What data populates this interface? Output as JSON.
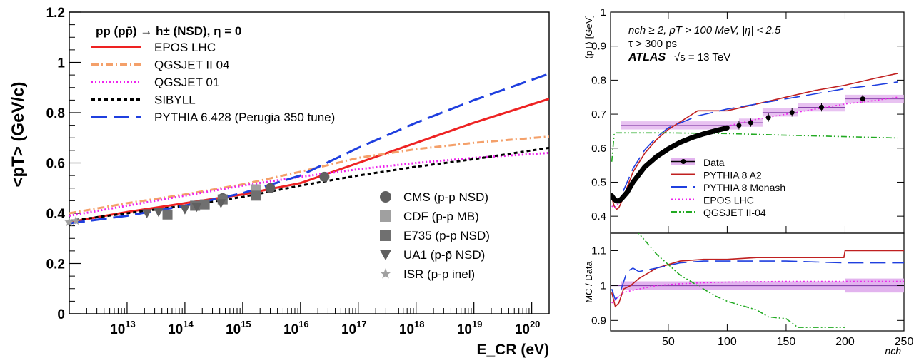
{
  "chart_data": [
    {
      "type": "line",
      "ylabel": "<pT> (GeV/c)",
      "xlabel": "E_CR (eV)",
      "xscale": "log",
      "xlim": [
        1000000000000.0,
        2e+20
      ],
      "ylim": [
        0,
        1.2
      ],
      "xticks": [
        "10^13",
        "10^14",
        "10^15",
        "10^16",
        "10^17",
        "10^18",
        "10^19",
        "10^20"
      ],
      "yticks": [
        "0",
        "0.2",
        "0.4",
        "0.6",
        "0.8",
        "1",
        "1.2"
      ],
      "legend_title": "pp (pp̄) → h± (NSD), η = 0",
      "legend_placement": "top-left",
      "marker_legend_placement": "bottom-right",
      "series": [
        {
          "name": "EPOS LHC",
          "color": "#ee2222",
          "style": "solid",
          "x": [
            1000000000000.0,
            10000000000000.0,
            100000000000000.0,
            1000000000000000.0,
            1e+16,
            1e+17,
            1e+18,
            1e+19,
            2e+20
          ],
          "y": [
            0.365,
            0.405,
            0.44,
            0.475,
            0.52,
            0.6,
            0.68,
            0.76,
            0.855
          ]
        },
        {
          "name": "QGSJET II 04",
          "color": "#f4a06a",
          "style": "dashdot",
          "x": [
            1000000000000.0,
            10000000000000.0,
            100000000000000.0,
            1000000000000000.0,
            1e+16,
            1e+17,
            1e+18,
            1e+19,
            2e+20
          ],
          "y": [
            0.4,
            0.44,
            0.475,
            0.515,
            0.565,
            0.62,
            0.655,
            0.68,
            0.705
          ]
        },
        {
          "name": "QGSJET 01",
          "color": "#ee22ee",
          "style": "dotted",
          "x": [
            1000000000000.0,
            10000000000000.0,
            100000000000000.0,
            1000000000000000.0,
            1e+16,
            1e+17,
            1e+18,
            1e+19,
            2e+20
          ],
          "y": [
            0.39,
            0.43,
            0.47,
            0.51,
            0.545,
            0.575,
            0.6,
            0.62,
            0.64
          ]
        },
        {
          "name": "SIBYLL",
          "color": "#000000",
          "style": "dashed",
          "x": [
            1000000000000.0,
            10000000000000.0,
            100000000000000.0,
            1000000000000000.0,
            1e+16,
            1e+17,
            1e+18,
            1e+19,
            2e+20
          ],
          "y": [
            0.37,
            0.4,
            0.43,
            0.465,
            0.51,
            0.55,
            0.585,
            0.615,
            0.66
          ]
        },
        {
          "name": "PYTHIA 6.428 (Perugia 350 tune)",
          "color": "#1f3fdf",
          "style": "longdash",
          "x": [
            1000000000000.0,
            10000000000000.0,
            100000000000000.0,
            1000000000000000.0,
            1e+16,
            1e+17,
            1e+18,
            1e+19,
            2e+20
          ],
          "y": [
            0.36,
            0.39,
            0.43,
            0.48,
            0.55,
            0.66,
            0.76,
            0.85,
            0.955
          ]
        }
      ],
      "markers": [
        {
          "name": "CMS (p-p NSD)",
          "shape": "circle",
          "color": "#606060",
          "x": [
            450000000000000.0,
            3000000000000000.0,
            2.6e+16
          ],
          "y": [
            0.46,
            0.5,
            0.545
          ]
        },
        {
          "name": "CDF (p-p̄ MB)",
          "shape": "square",
          "color": "#a0a0a0",
          "x": [
            1700000000000000.0
          ],
          "y": [
            0.495
          ]
        },
        {
          "name": "E735 (p-p̄ NSD)",
          "shape": "square",
          "color": "#707070",
          "x": [
            50000000000000.0,
            150000000000000.0,
            220000000000000.0,
            450000000000000.0,
            1700000000000000.0
          ],
          "y": [
            0.395,
            0.43,
            0.435,
            0.455,
            0.47
          ]
        },
        {
          "name": "UA1 (p-p̄ NSD)",
          "shape": "triangle-down",
          "color": "#606060",
          "x": [
            22000000000000.0,
            35000000000000.0,
            100000000000000.0,
            160000000000000.0,
            420000000000000.0
          ],
          "y": [
            0.4,
            0.405,
            0.415,
            0.425,
            0.44
          ]
        },
        {
          "name": "ISR (p-p inel)",
          "shape": "star",
          "color": "#a0a0a0",
          "x": [
            1000000000000.0,
            1300000000000.0
          ],
          "y": [
            0.365,
            0.37
          ]
        }
      ]
    },
    {
      "type": "line",
      "ylabel": "⟨pT⟩ [GeV]",
      "xlabel": "nch",
      "xlim": [
        1,
        250
      ],
      "ylim": [
        0.35,
        1.0
      ],
      "xticks": [
        "50",
        "100",
        "150",
        "200",
        "250"
      ],
      "yticks": [
        "0.4",
        "0.5",
        "0.6",
        "0.7",
        "0.8",
        "0.9",
        "1"
      ],
      "annotations": [
        "nch ≥ 2, pT > 100 MeV, |η| < 2.5",
        "τ > 300 ps",
        "ATLAS",
        "√s = 13 TeV"
      ],
      "legend_placement": "lower-middle",
      "series": [
        {
          "name": "Data",
          "color": "#000000",
          "style": "points",
          "band_color": "#e2b3ee",
          "x": [
            2,
            4,
            6,
            8,
            10,
            15,
            20,
            30,
            40,
            50,
            60,
            70,
            80,
            90,
            100,
            110,
            120,
            135,
            155,
            180,
            215
          ],
          "y": [
            0.46,
            0.45,
            0.445,
            0.445,
            0.45,
            0.47,
            0.5,
            0.545,
            0.575,
            0.598,
            0.617,
            0.631,
            0.642,
            0.651,
            0.66,
            0.667,
            0.675,
            0.69,
            0.705,
            0.72,
            0.745
          ]
        },
        {
          "name": "PYTHIA 8 A2",
          "color": "#c02020",
          "style": "solid",
          "x": [
            2,
            4,
            6,
            8,
            10,
            20,
            30,
            40,
            50,
            75,
            100,
            125,
            150,
            175,
            200,
            225,
            245
          ],
          "y": [
            0.455,
            0.43,
            0.42,
            0.425,
            0.44,
            0.53,
            0.585,
            0.625,
            0.655,
            0.71,
            0.71,
            0.73,
            0.75,
            0.77,
            0.785,
            0.805,
            0.82
          ]
        },
        {
          "name": "PYTHIA 8 Monash",
          "color": "#1f3fdf",
          "style": "longdash",
          "x": [
            2,
            4,
            6,
            8,
            10,
            20,
            30,
            40,
            50,
            75,
            100,
            125,
            150,
            175,
            200,
            225,
            245
          ],
          "y": [
            0.46,
            0.445,
            0.44,
            0.445,
            0.46,
            0.54,
            0.595,
            0.632,
            0.66,
            0.695,
            0.715,
            0.73,
            0.745,
            0.76,
            0.775,
            0.785,
            0.795
          ]
        },
        {
          "name": "EPOS LHC",
          "color": "#ee22ee",
          "style": "dotted",
          "x": [
            2,
            4,
            6,
            8,
            10,
            20,
            30,
            40,
            50,
            75,
            100,
            125,
            150,
            175,
            200,
            225,
            245
          ],
          "y": [
            0.43,
            0.425,
            0.43,
            0.44,
            0.45,
            0.5,
            0.54,
            0.57,
            0.595,
            0.64,
            0.665,
            0.685,
            0.7,
            0.715,
            0.73,
            0.74,
            0.75
          ]
        },
        {
          "name": "QGSJET II-04",
          "color": "#22aa22",
          "style": "dashdotdot",
          "x": [
            2,
            4,
            6,
            8,
            10,
            20,
            50,
            100,
            150,
            200,
            245
          ],
          "y": [
            0.56,
            0.64,
            0.645,
            0.645,
            0.645,
            0.645,
            0.645,
            0.643,
            0.638,
            0.634,
            0.63
          ]
        }
      ]
    },
    {
      "type": "line",
      "ylabel": "MC / Data",
      "xlabel": "nch",
      "xlim": [
        1,
        250
      ],
      "ylim": [
        0.87,
        1.15
      ],
      "xticks": [
        "50",
        "100",
        "150",
        "200",
        "250"
      ],
      "yticks": [
        "0.9",
        "1",
        "1.1"
      ],
      "series": [
        {
          "name": "PYTHIA 8 A2",
          "color": "#c02020",
          "style": "solid",
          "x": [
            2,
            5,
            8,
            12,
            18,
            25,
            40,
            60,
            80,
            100,
            125,
            150,
            175,
            199,
            200,
            250
          ],
          "y": [
            0.98,
            0.94,
            0.95,
            0.99,
            1.0,
            1.02,
            1.05,
            1.07,
            1.075,
            1.075,
            1.08,
            1.08,
            1.08,
            1.08,
            1.1,
            1.1
          ]
        },
        {
          "name": "PYTHIA 8 Monash",
          "color": "#1f3fdf",
          "style": "longdash",
          "x": [
            2,
            5,
            8,
            12,
            15,
            20,
            25,
            40,
            60,
            80,
            100,
            150,
            200,
            250
          ],
          "y": [
            0.99,
            0.96,
            0.97,
            1.01,
            1.04,
            1.05,
            1.04,
            1.05,
            1.065,
            1.07,
            1.07,
            1.07,
            1.065,
            1.065
          ]
        },
        {
          "name": "EPOS LHC",
          "color": "#ee22ee",
          "style": "dotted",
          "x": [
            2,
            5,
            8,
            12,
            18,
            25,
            40,
            60,
            80,
            100,
            150,
            200,
            250
          ],
          "y": [
            0.95,
            0.96,
            0.97,
            0.98,
            0.985,
            0.99,
            1.0,
            1.005,
            1.008,
            1.01,
            1.012,
            1.012,
            1.012
          ]
        },
        {
          "name": "QGSJET II-04",
          "color": "#22aa22",
          "style": "dashdotdot",
          "x": [
            22,
            30,
            40,
            50,
            60,
            70,
            80,
            90,
            100,
            110,
            125,
            135,
            150,
            160,
            175,
            200
          ],
          "y": [
            1.16,
            1.13,
            1.09,
            1.06,
            1.03,
            1.01,
            0.99,
            0.97,
            0.955,
            0.945,
            0.93,
            0.91,
            0.905,
            0.88,
            0.88,
            0.88
          ]
        }
      ]
    }
  ]
}
